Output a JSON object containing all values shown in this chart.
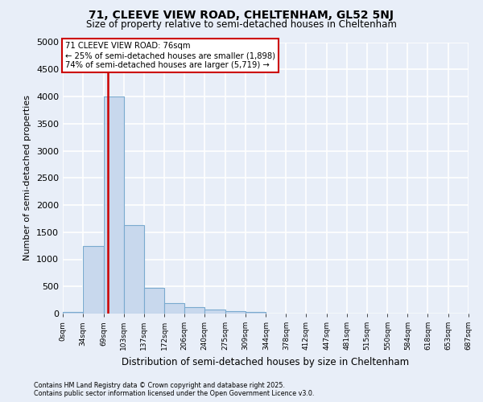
{
  "title1": "71, CLEEVE VIEW ROAD, CHELTENHAM, GL52 5NJ",
  "title2": "Size of property relative to semi-detached houses in Cheltenham",
  "xlabel": "Distribution of semi-detached houses by size in Cheltenham",
  "ylabel": "Number of semi-detached properties",
  "footnote1": "Contains HM Land Registry data © Crown copyright and database right 2025.",
  "footnote2": "Contains public sector information licensed under the Open Government Licence v3.0.",
  "bin_edges": [
    0,
    34,
    69,
    103,
    137,
    172,
    206,
    240,
    275,
    309,
    344,
    378,
    412,
    447,
    481,
    515,
    550,
    584,
    618,
    653,
    687
  ],
  "bin_labels": [
    "0sqm",
    "34sqm",
    "69sqm",
    "103sqm",
    "137sqm",
    "172sqm",
    "206sqm",
    "240sqm",
    "275sqm",
    "309sqm",
    "344sqm",
    "378sqm",
    "412sqm",
    "447sqm",
    "481sqm",
    "515sqm",
    "550sqm",
    "584sqm",
    "618sqm",
    "653sqm",
    "687sqm"
  ],
  "counts": [
    30,
    1250,
    4000,
    1630,
    480,
    200,
    125,
    75,
    40,
    30,
    0,
    0,
    0,
    0,
    0,
    0,
    0,
    0,
    0,
    0
  ],
  "property_size": 76,
  "property_label": "71 CLEEVE VIEW ROAD: 76sqm",
  "pct_smaller": 25,
  "n_smaller": 1898,
  "pct_larger": 74,
  "n_larger": 5719,
  "bar_color": "#c8d8ed",
  "bar_edge_color": "#7aaacf",
  "vline_color": "#cc0000",
  "box_edge_color": "#cc0000",
  "background_color": "#e8eef8",
  "grid_color": "#ffffff",
  "ylim": [
    0,
    5000
  ],
  "yticks": [
    0,
    500,
    1000,
    1500,
    2000,
    2500,
    3000,
    3500,
    4000,
    4500,
    5000
  ]
}
